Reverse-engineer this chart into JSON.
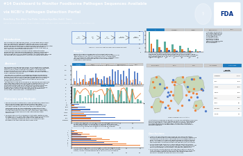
{
  "title_line1": "#14 Dashboard to Monitor Foodborne Pathogen Sequences Available",
  "title_line2": "via NCBI’s Pathogen Detection Portal",
  "authors": "Maria Bailey, Marc Allard, Tina Pfeifer, Carebara Kepa Bliss, Ruth E. Timme",
  "affiliation": "Center for Food Safety and Applied Nutrition, U.S. Food and Drug Administration, College Park, Maryland, USA",
  "header_bg": "#1a7abf",
  "header_text": "#ffffff",
  "section_header_bg": "#1a7abf",
  "section_header_text": "#ffffff",
  "body_bg": "#ffffff",
  "poster_bg": "#dce8f3",
  "intro_header": "Introduction",
  "abstract_header": "Abstract",
  "methods_header": "Materials and Methods",
  "results_header": "Results",
  "conclusions_header": "Conclusions",
  "bar_blue": "#4472c4",
  "bar_orange": "#ed7d31",
  "bar_teal": "#5aad9e",
  "bar_gray": "#bfbfbf",
  "fda_blue": "#003087",
  "map_blue": "#7ca8d5",
  "map_land": "#c8d8e8"
}
